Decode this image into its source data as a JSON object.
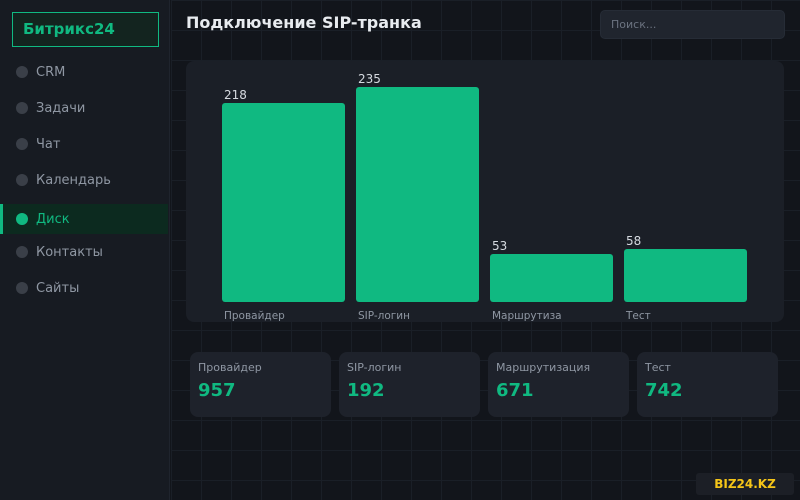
{
  "app": {
    "logo": "Битрикс24"
  },
  "sidebar": {
    "items": [
      {
        "label": "CRM",
        "active": false
      },
      {
        "label": "Задачи",
        "active": false
      },
      {
        "label": "Чат",
        "active": false
      },
      {
        "label": "Календарь",
        "active": false
      },
      {
        "label": "Диск",
        "active": true
      },
      {
        "label": "Контакты",
        "active": false
      },
      {
        "label": "Сайты",
        "active": false
      }
    ]
  },
  "header": {
    "title": "Подключение SIP-транка"
  },
  "search": {
    "placeholder": "Поиск..."
  },
  "chart_data": {
    "type": "bar",
    "title": "",
    "xlabel": "",
    "ylabel": "",
    "categories": [
      "Провайдер",
      "SIP-логин",
      "Маршрутиза",
      "Тест"
    ],
    "values": [
      218,
      235,
      53,
      58
    ],
    "bar_color": "#10b981",
    "grid": false
  },
  "stats": [
    {
      "label": "Провайдер",
      "value": "957"
    },
    {
      "label": "SIP-логин",
      "value": "192"
    },
    {
      "label": "Маршрутизация",
      "value": "671"
    },
    {
      "label": "Тест",
      "value": "742"
    }
  ],
  "watermark": "BIZ24.KZ",
  "colors": {
    "accent": "#10b981",
    "watermark": "#f5c518"
  }
}
